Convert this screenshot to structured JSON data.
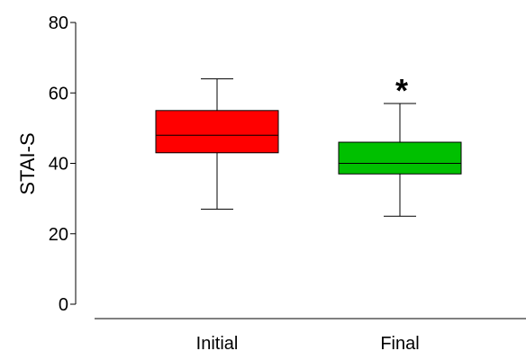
{
  "chart_data": {
    "type": "box",
    "ylabel": "STAI-S",
    "ylim": [
      0,
      80
    ],
    "yticks": [
      0,
      20,
      40,
      60,
      80
    ],
    "grid": false,
    "categories": [
      "Initial",
      "Final"
    ],
    "boxes": [
      {
        "category": "Initial",
        "min": 27,
        "q1": 43,
        "median": 48,
        "q3": 55,
        "max": 64,
        "color": "#ff0000",
        "annotation": ""
      },
      {
        "category": "Final",
        "min": 25,
        "q1": 37,
        "median": 40,
        "q3": 46,
        "max": 57,
        "color": "#00c000",
        "annotation": "*"
      }
    ]
  }
}
